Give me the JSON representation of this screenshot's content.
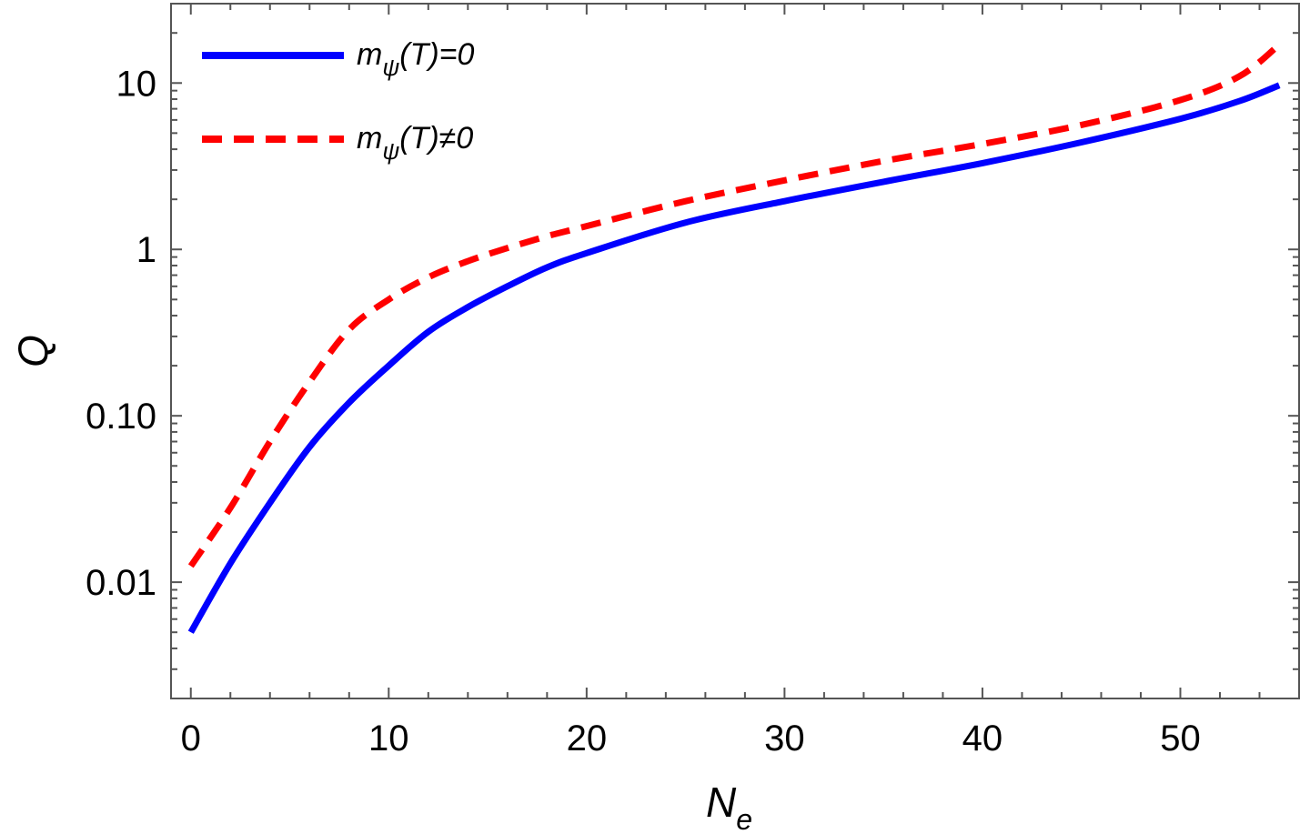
{
  "chart_data": {
    "type": "line",
    "title": "",
    "xlabel": "N",
    "xlabel_sub": "e",
    "ylabel": "Q",
    "xlim": [
      -1,
      56
    ],
    "ylim": [
      0.002,
      30
    ],
    "yscale": "log",
    "x_ticks": [
      0,
      10,
      20,
      30,
      40,
      50
    ],
    "x_tick_labels": [
      "0",
      "10",
      "20",
      "30",
      "40",
      "50"
    ],
    "y_ticks": [
      0.01,
      0.1,
      1,
      10
    ],
    "y_tick_labels": [
      "0.01",
      "0.10",
      "1",
      "10"
    ],
    "legend_position": "top-left",
    "series": [
      {
        "name": "m_ψ(T)=0",
        "legend_main": "m",
        "legend_sub": "ψ",
        "legend_rest": "(T)=0",
        "color": "#0000ff",
        "style": "solid",
        "x": [
          0,
          2,
          4,
          6,
          8,
          10,
          12,
          14,
          16,
          18,
          20,
          25,
          30,
          35,
          40,
          45,
          50,
          53,
          55
        ],
        "values": [
          0.005,
          0.013,
          0.03,
          0.065,
          0.12,
          0.2,
          0.32,
          0.45,
          0.6,
          0.78,
          0.95,
          1.45,
          1.95,
          2.55,
          3.3,
          4.4,
          6.1,
          7.8,
          9.7
        ]
      },
      {
        "name": "m_ψ(T)≠0",
        "legend_main": "m",
        "legend_sub": "ψ",
        "legend_rest": "(T)≠0",
        "color": "#ff0000",
        "style": "dashed",
        "x": [
          0,
          2,
          4,
          6,
          8,
          10,
          12,
          14,
          16,
          18,
          20,
          25,
          30,
          35,
          40,
          45,
          50,
          53,
          55
        ],
        "values": [
          0.0125,
          0.028,
          0.07,
          0.16,
          0.33,
          0.5,
          0.68,
          0.85,
          1.02,
          1.2,
          1.38,
          1.95,
          2.6,
          3.4,
          4.3,
          5.6,
          7.9,
          11,
          17
        ]
      }
    ]
  }
}
